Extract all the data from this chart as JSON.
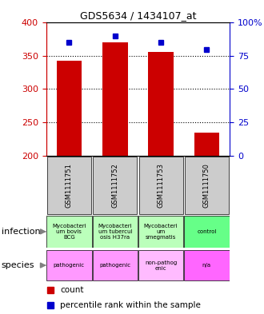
{
  "title": "GDS5634 / 1434107_at",
  "samples": [
    "GSM1111751",
    "GSM1111752",
    "GSM1111753",
    "GSM1111750"
  ],
  "counts": [
    343,
    370,
    356,
    234
  ],
  "percentiles": [
    85,
    90,
    85,
    80
  ],
  "ymin": 200,
  "ymax": 400,
  "pct_min": 0,
  "pct_max": 100,
  "yticks_left": [
    200,
    250,
    300,
    350,
    400
  ],
  "yticks_right": [
    0,
    25,
    50,
    75,
    100
  ],
  "infection": [
    "Mycobacteri\num bovis\nBCG",
    "Mycobacteri\num tubercul\nosis H37ra",
    "Mycobacteri\num\nsmegmatis",
    "control"
  ],
  "species": [
    "pathogenic",
    "pathogenic",
    "non-pathog\nenic",
    "n/a"
  ],
  "infection_colors": [
    "#bbffbb",
    "#bbffbb",
    "#bbffbb",
    "#66ff88"
  ],
  "species_colors": [
    "#ff99ff",
    "#ff99ff",
    "#ffbbff",
    "#ff66ff"
  ],
  "bar_color": "#cc0000",
  "dot_color": "#0000cc",
  "sample_bg": "#cccccc",
  "left_label_color": "#cc0000",
  "right_label_color": "#0000cc",
  "legend_items": [
    "count",
    "percentile rank within the sample"
  ]
}
